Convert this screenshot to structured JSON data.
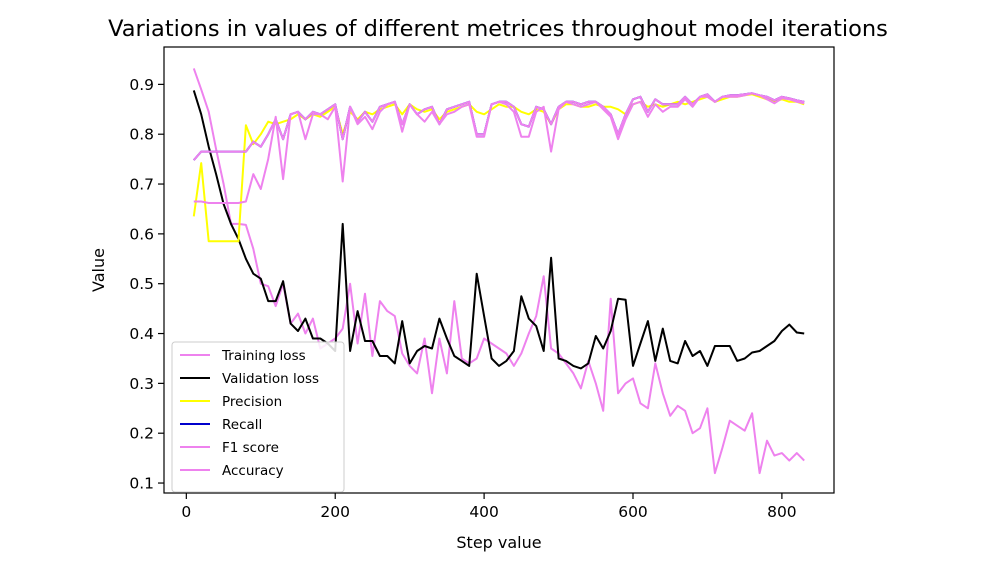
{
  "chart_data": {
    "type": "line",
    "title": "Variations in values of different metrices throughout model iterations",
    "xlabel": "Step value",
    "ylabel": "Value",
    "xlim": [
      -30,
      870
    ],
    "ylim": [
      0.08,
      0.975
    ],
    "xticks": [
      0,
      200,
      400,
      600,
      800
    ],
    "yticks": [
      0.1,
      0.2,
      0.3,
      0.4,
      0.5,
      0.6,
      0.7,
      0.8,
      0.9
    ],
    "grid": false,
    "legend_position": "lower-left",
    "x": [
      10,
      20,
      30,
      40,
      50,
      60,
      70,
      80,
      90,
      100,
      110,
      120,
      130,
      140,
      150,
      160,
      170,
      180,
      190,
      200,
      210,
      220,
      230,
      240,
      250,
      260,
      270,
      280,
      290,
      300,
      310,
      320,
      330,
      340,
      350,
      360,
      370,
      380,
      390,
      400,
      410,
      420,
      430,
      440,
      450,
      460,
      470,
      480,
      490,
      500,
      510,
      520,
      530,
      540,
      550,
      560,
      570,
      580,
      590,
      600,
      610,
      620,
      630,
      640,
      650,
      660,
      670,
      680,
      690,
      700,
      710,
      720,
      730,
      740,
      750,
      760,
      770,
      780,
      790,
      800,
      810,
      820,
      830
    ],
    "series": [
      {
        "name": "Training loss",
        "color": "#ee82ee",
        "values": [
          0.932,
          0.89,
          0.845,
          0.77,
          0.7,
          0.62,
          0.62,
          0.618,
          0.57,
          0.5,
          0.495,
          0.455,
          0.5,
          0.42,
          0.44,
          0.4,
          0.43,
          0.37,
          0.38,
          0.39,
          0.41,
          0.5,
          0.38,
          0.48,
          0.355,
          0.465,
          0.445,
          0.435,
          0.36,
          0.335,
          0.32,
          0.39,
          0.28,
          0.39,
          0.32,
          0.465,
          0.35,
          0.34,
          0.35,
          0.39,
          0.38,
          0.37,
          0.36,
          0.335,
          0.36,
          0.4,
          0.435,
          0.515,
          0.37,
          0.36,
          0.34,
          0.32,
          0.29,
          0.345,
          0.3,
          0.245,
          0.47,
          0.28,
          0.3,
          0.31,
          0.26,
          0.25,
          0.34,
          0.28,
          0.235,
          0.255,
          0.245,
          0.2,
          0.21,
          0.25,
          0.12,
          0.17,
          0.225,
          0.215,
          0.205,
          0.24,
          0.12,
          0.185,
          0.155,
          0.16,
          0.145,
          0.16,
          0.145
        ]
      },
      {
        "name": "Validation loss",
        "color": "#000000",
        "values": [
          0.888,
          0.84,
          0.775,
          0.72,
          0.66,
          0.62,
          0.59,
          0.55,
          0.52,
          0.51,
          0.465,
          0.465,
          0.505,
          0.42,
          0.405,
          0.43,
          0.39,
          0.39,
          0.38,
          0.365,
          0.62,
          0.365,
          0.445,
          0.385,
          0.385,
          0.355,
          0.355,
          0.34,
          0.425,
          0.34,
          0.365,
          0.375,
          0.37,
          0.43,
          0.39,
          0.355,
          0.345,
          0.335,
          0.52,
          0.435,
          0.35,
          0.335,
          0.345,
          0.365,
          0.475,
          0.43,
          0.415,
          0.365,
          0.552,
          0.35,
          0.345,
          0.335,
          0.33,
          0.34,
          0.395,
          0.37,
          0.405,
          0.47,
          0.468,
          0.335,
          0.38,
          0.425,
          0.345,
          0.41,
          0.345,
          0.34,
          0.385,
          0.355,
          0.365,
          0.335,
          0.375,
          0.375,
          0.375,
          0.345,
          0.35,
          0.362,
          0.365,
          0.375,
          0.385,
          0.405,
          0.418,
          0.402,
          0.4
        ]
      },
      {
        "name": "Precision",
        "color": "#ffff00",
        "values": [
          0.635,
          0.742,
          0.585,
          0.585,
          0.585,
          0.585,
          0.585,
          0.818,
          0.78,
          0.8,
          0.825,
          0.82,
          0.825,
          0.83,
          0.84,
          0.83,
          0.84,
          0.835,
          0.845,
          0.855,
          0.8,
          0.845,
          0.83,
          0.845,
          0.84,
          0.85,
          0.855,
          0.86,
          0.84,
          0.86,
          0.85,
          0.845,
          0.85,
          0.83,
          0.845,
          0.85,
          0.855,
          0.86,
          0.845,
          0.84,
          0.85,
          0.86,
          0.855,
          0.855,
          0.845,
          0.84,
          0.85,
          0.845,
          0.82,
          0.85,
          0.86,
          0.86,
          0.855,
          0.855,
          0.86,
          0.855,
          0.855,
          0.85,
          0.84,
          0.86,
          0.865,
          0.855,
          0.86,
          0.855,
          0.86,
          0.865,
          0.86,
          0.865,
          0.87,
          0.875,
          0.865,
          0.87,
          0.875,
          0.875,
          0.878,
          0.88,
          0.875,
          0.87,
          0.865,
          0.87,
          0.865,
          0.865,
          0.86
        ]
      },
      {
        "name": "Recall",
        "color": "#0000cc",
        "values": [
          0.748,
          0.765,
          0.765,
          0.765,
          0.765,
          0.765,
          0.765,
          0.765,
          0.785,
          0.775,
          0.8,
          0.83,
          0.79,
          0.84,
          0.845,
          0.83,
          0.845,
          0.84,
          0.85,
          0.86,
          0.79,
          0.855,
          0.825,
          0.845,
          0.825,
          0.855,
          0.86,
          0.865,
          0.82,
          0.86,
          0.84,
          0.85,
          0.855,
          0.82,
          0.85,
          0.855,
          0.86,
          0.865,
          0.8,
          0.8,
          0.86,
          0.865,
          0.865,
          0.855,
          0.82,
          0.815,
          0.855,
          0.85,
          0.82,
          0.855,
          0.865,
          0.865,
          0.86,
          0.865,
          0.865,
          0.855,
          0.84,
          0.8,
          0.84,
          0.87,
          0.875,
          0.845,
          0.87,
          0.86,
          0.86,
          0.86,
          0.875,
          0.86,
          0.875,
          0.88,
          0.865,
          0.875,
          0.878,
          0.878,
          0.88,
          0.882,
          0.878,
          0.875,
          0.868,
          0.875,
          0.872,
          0.868,
          0.865
        ]
      },
      {
        "name": "F1 score",
        "color": "#ee82ee",
        "values": [
          0.665,
          0.665,
          0.662,
          0.662,
          0.662,
          0.662,
          0.662,
          0.665,
          0.72,
          0.69,
          0.75,
          0.835,
          0.71,
          0.84,
          0.845,
          0.79,
          0.84,
          0.84,
          0.83,
          0.855,
          0.705,
          0.855,
          0.82,
          0.835,
          0.81,
          0.845,
          0.86,
          0.865,
          0.805,
          0.86,
          0.84,
          0.825,
          0.845,
          0.82,
          0.84,
          0.845,
          0.855,
          0.86,
          0.795,
          0.795,
          0.86,
          0.865,
          0.86,
          0.845,
          0.795,
          0.795,
          0.845,
          0.855,
          0.765,
          0.85,
          0.865,
          0.86,
          0.855,
          0.86,
          0.865,
          0.85,
          0.835,
          0.79,
          0.83,
          0.86,
          0.865,
          0.835,
          0.86,
          0.845,
          0.855,
          0.855,
          0.87,
          0.855,
          0.875,
          0.875,
          0.865,
          0.875,
          0.875,
          0.875,
          0.878,
          0.882,
          0.878,
          0.87,
          0.862,
          0.872,
          0.87,
          0.865,
          0.862
        ]
      },
      {
        "name": "Accuracy",
        "color": "#ee82ee",
        "values": [
          0.748,
          0.765,
          0.765,
          0.765,
          0.765,
          0.765,
          0.765,
          0.765,
          0.785,
          0.775,
          0.8,
          0.83,
          0.79,
          0.84,
          0.845,
          0.83,
          0.845,
          0.84,
          0.85,
          0.86,
          0.79,
          0.855,
          0.825,
          0.845,
          0.825,
          0.855,
          0.86,
          0.865,
          0.82,
          0.86,
          0.84,
          0.85,
          0.855,
          0.82,
          0.85,
          0.855,
          0.86,
          0.865,
          0.8,
          0.8,
          0.86,
          0.865,
          0.865,
          0.855,
          0.82,
          0.815,
          0.855,
          0.85,
          0.82,
          0.855,
          0.865,
          0.865,
          0.86,
          0.865,
          0.865,
          0.855,
          0.84,
          0.8,
          0.84,
          0.87,
          0.875,
          0.845,
          0.87,
          0.86,
          0.86,
          0.86,
          0.875,
          0.86,
          0.875,
          0.88,
          0.865,
          0.875,
          0.878,
          0.878,
          0.88,
          0.882,
          0.878,
          0.875,
          0.868,
          0.875,
          0.872,
          0.868,
          0.865
        ]
      }
    ]
  }
}
